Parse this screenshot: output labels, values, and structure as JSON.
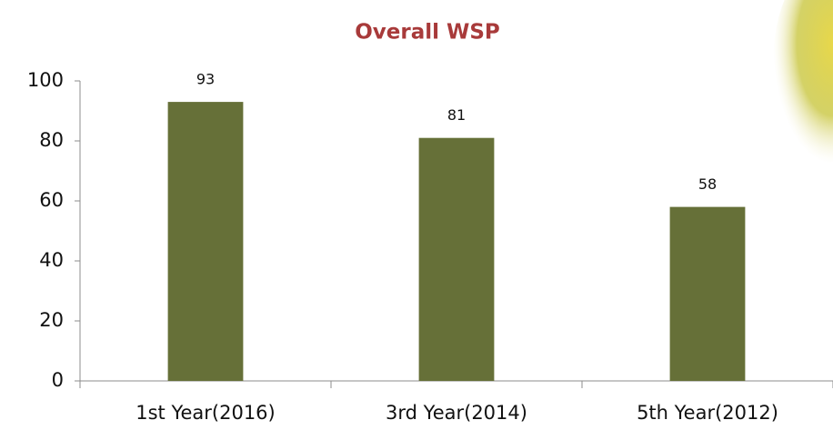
{
  "chart_data": {
    "type": "bar",
    "title": "Overall WSP",
    "categories": [
      "1st Year(2016)",
      "3rd Year(2014)",
      "5th Year(2012)"
    ],
    "values": [
      93,
      81,
      58
    ],
    "color": "#667038",
    "ylim": [
      0,
      100
    ],
    "yticks": [
      0,
      20,
      40,
      60,
      80,
      100
    ],
    "grid": false
  }
}
